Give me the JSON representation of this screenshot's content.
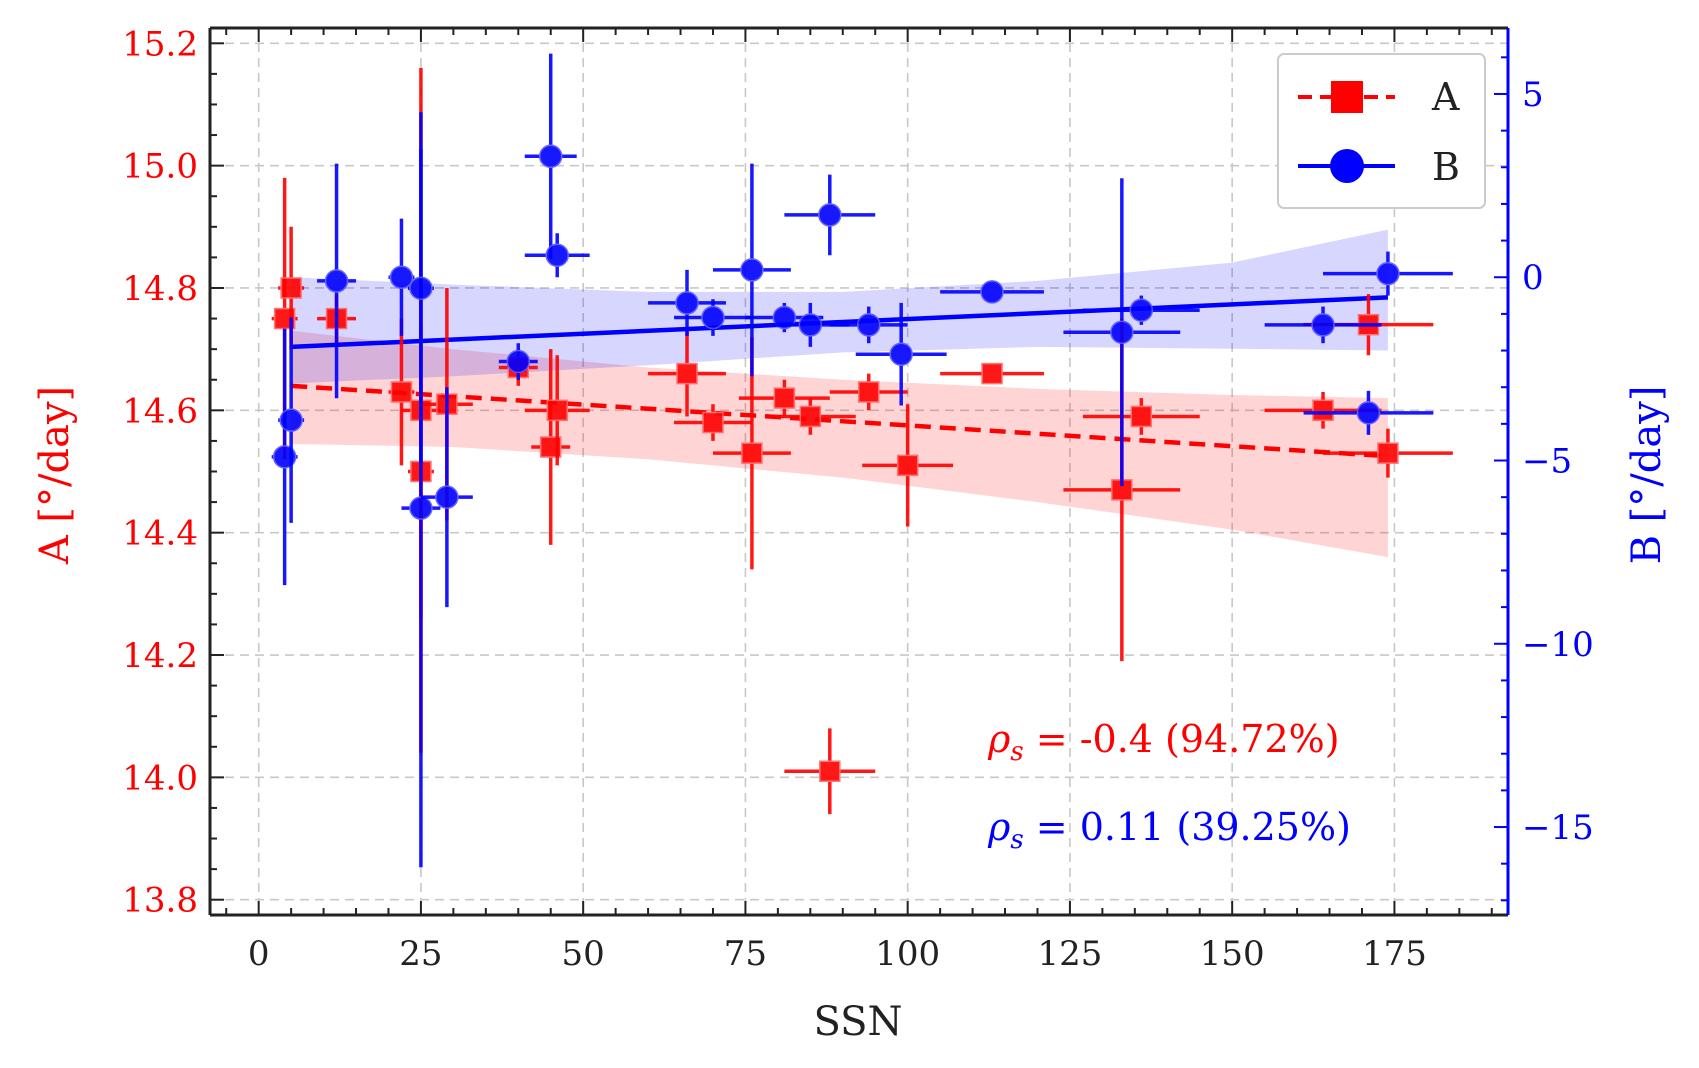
{
  "chart_data": {
    "type": "scatter",
    "xlabel": "SSN",
    "x_range": [
      -7.5,
      192.5
    ],
    "x_ticks": [
      0,
      25,
      50,
      75,
      100,
      125,
      150,
      175
    ],
    "grid": true,
    "legend_placement": "top-right",
    "y_left": {
      "label": "A  [°/day]",
      "range": [
        13.775,
        15.225
      ],
      "ticks": [
        13.8,
        14.0,
        14.2,
        14.4,
        14.6,
        14.8,
        15.0,
        15.2
      ],
      "color": "#ff0000"
    },
    "y_right": {
      "label": "B  [°/day]",
      "range": [
        -17.4,
        6.8
      ],
      "ticks": [
        5,
        0,
        -5,
        -10,
        -15
      ],
      "tick_labels": [
        "5",
        "0",
        "−5",
        "−10",
        "−15"
      ],
      "color": "#0000ff"
    },
    "series": [
      {
        "name": "A",
        "axis": "left",
        "marker": "square",
        "color": "#ff0000",
        "points": [
          {
            "x": 4,
            "y": 14.75,
            "xerr": 2,
            "yerr": 0.23
          },
          {
            "x": 5,
            "y": 14.8,
            "xerr": 2,
            "yerr": 0.1
          },
          {
            "x": 12,
            "y": 14.75,
            "xerr": 3,
            "yerr": 0.04
          },
          {
            "x": 22,
            "y": 14.63,
            "xerr": 2,
            "yerr": 0.12
          },
          {
            "x": 25,
            "y": 14.5,
            "xerr": 2,
            "yerr": 0.24
          },
          {
            "x": 25,
            "y": 14.6,
            "xerr": 3,
            "yerr": 0.56
          },
          {
            "x": 29,
            "y": 14.61,
            "xerr": 4,
            "yerr": 0.19
          },
          {
            "x": 40,
            "y": 14.67,
            "xerr": 3,
            "yerr": 0.03
          },
          {
            "x": 45,
            "y": 14.54,
            "xerr": 3,
            "yerr": 0.16
          },
          {
            "x": 46,
            "y": 14.6,
            "xerr": 5,
            "yerr": 0.09
          },
          {
            "x": 66,
            "y": 14.66,
            "xerr": 6,
            "yerr": 0.07
          },
          {
            "x": 70,
            "y": 14.58,
            "xerr": 6,
            "yerr": 0.03
          },
          {
            "x": 76,
            "y": 14.53,
            "xerr": 6,
            "yerr": 0.19
          },
          {
            "x": 81,
            "y": 14.62,
            "xerr": 7,
            "yerr": 0.03
          },
          {
            "x": 85,
            "y": 14.59,
            "xerr": 7,
            "yerr": 0.03
          },
          {
            "x": 88,
            "y": 14.01,
            "xerr": 7,
            "yerr": 0.07
          },
          {
            "x": 94,
            "y": 14.63,
            "xerr": 6,
            "yerr": 0.03
          },
          {
            "x": 100,
            "y": 14.51,
            "xerr": 7,
            "yerr": 0.1
          },
          {
            "x": 113,
            "y": 14.66,
            "xerr": 8,
            "yerr": 0.01
          },
          {
            "x": 133,
            "y": 14.47,
            "xerr": 9,
            "yerr": 0.28
          },
          {
            "x": 136,
            "y": 14.59,
            "xerr": 9,
            "yerr": 0.03
          },
          {
            "x": 164,
            "y": 14.6,
            "xerr": 9,
            "yerr": 0.03
          },
          {
            "x": 171,
            "y": 14.74,
            "xerr": 10,
            "yerr": 0.05
          },
          {
            "x": 174,
            "y": 14.53,
            "xerr": 10,
            "yerr": 0.04
          }
        ],
        "fit": {
          "x0": 5,
          "y0": 14.64,
          "x1": 174,
          "y1": 14.525
        },
        "band": {
          "x": [
            5,
            30,
            60,
            90,
            120,
            150,
            174
          ],
          "low": [
            14.545,
            14.54,
            14.52,
            14.49,
            14.45,
            14.405,
            14.36
          ],
          "high": [
            14.73,
            14.7,
            14.67,
            14.65,
            14.635,
            14.625,
            14.62
          ]
        }
      },
      {
        "name": "B",
        "axis": "right",
        "marker": "circle",
        "color": "#0000ff",
        "points": [
          {
            "x": 4,
            "y": -4.9,
            "xerr": 2,
            "yerr": 3.5
          },
          {
            "x": 5,
            "y": -3.9,
            "xerr": 2,
            "yerr": 2.8
          },
          {
            "x": 12,
            "y": -0.1,
            "xerr": 3,
            "yerr": 3.2
          },
          {
            "x": 22,
            "y": 0.0,
            "xerr": 2,
            "yerr": 1.6
          },
          {
            "x": 25,
            "y": -6.3,
            "xerr": 3,
            "yerr": 9.8
          },
          {
            "x": 25,
            "y": -0.3,
            "xerr": 2,
            "yerr": 4.8
          },
          {
            "x": 29,
            "y": -6.0,
            "xerr": 4,
            "yerr": 3.0
          },
          {
            "x": 40,
            "y": -2.3,
            "xerr": 3,
            "yerr": 0.5
          },
          {
            "x": 45,
            "y": 3.3,
            "xerr": 4,
            "yerr": 2.8
          },
          {
            "x": 46,
            "y": 0.6,
            "xerr": 5,
            "yerr": 0.6
          },
          {
            "x": 66,
            "y": -0.7,
            "xerr": 6,
            "yerr": 0.9
          },
          {
            "x": 70,
            "y": -1.1,
            "xerr": 6,
            "yerr": 0.5
          },
          {
            "x": 76,
            "y": 0.2,
            "xerr": 6,
            "yerr": 2.9
          },
          {
            "x": 81,
            "y": -1.1,
            "xerr": 6,
            "yerr": 0.4
          },
          {
            "x": 85,
            "y": -1.3,
            "xerr": 6,
            "yerr": 0.6
          },
          {
            "x": 88,
            "y": 1.7,
            "xerr": 7,
            "yerr": 1.1
          },
          {
            "x": 94,
            "y": -1.3,
            "xerr": 6,
            "yerr": 0.5
          },
          {
            "x": 99,
            "y": -2.1,
            "xerr": 7,
            "yerr": 1.4
          },
          {
            "x": 113,
            "y": -0.4,
            "xerr": 8,
            "yerr": 0.1
          },
          {
            "x": 133,
            "y": -1.5,
            "xerr": 9,
            "yerr": 4.2
          },
          {
            "x": 136,
            "y": -0.9,
            "xerr": 9,
            "yerr": 0.4
          },
          {
            "x": 164,
            "y": -1.3,
            "xerr": 9,
            "yerr": 0.5
          },
          {
            "x": 171,
            "y": -3.7,
            "xerr": 10,
            "yerr": 0.6
          },
          {
            "x": 174,
            "y": 0.1,
            "xerr": 10,
            "yerr": 0.6
          }
        ],
        "fit": {
          "x0": 5,
          "y0": -1.9,
          "x1": 174,
          "y1": -0.55
        },
        "band": {
          "x": [
            5,
            30,
            60,
            90,
            120,
            150,
            174
          ],
          "low": [
            -2.9,
            -2.7,
            -2.4,
            -2.05,
            -1.9,
            -1.95,
            -2.0
          ],
          "high": [
            0.0,
            -0.2,
            -0.4,
            -0.4,
            -0.1,
            0.4,
            1.3
          ]
        }
      }
    ],
    "annotations": [
      {
        "rho": "ρ",
        "sub": "s",
        "eq": " = ",
        "text": "-0.4  (94.72%)",
        "color": "#ff0000"
      },
      {
        "rho": "ρ",
        "sub": "s",
        "eq": " = ",
        "text": "0.11  (39.25%)",
        "color": "#0000ff"
      }
    ]
  }
}
